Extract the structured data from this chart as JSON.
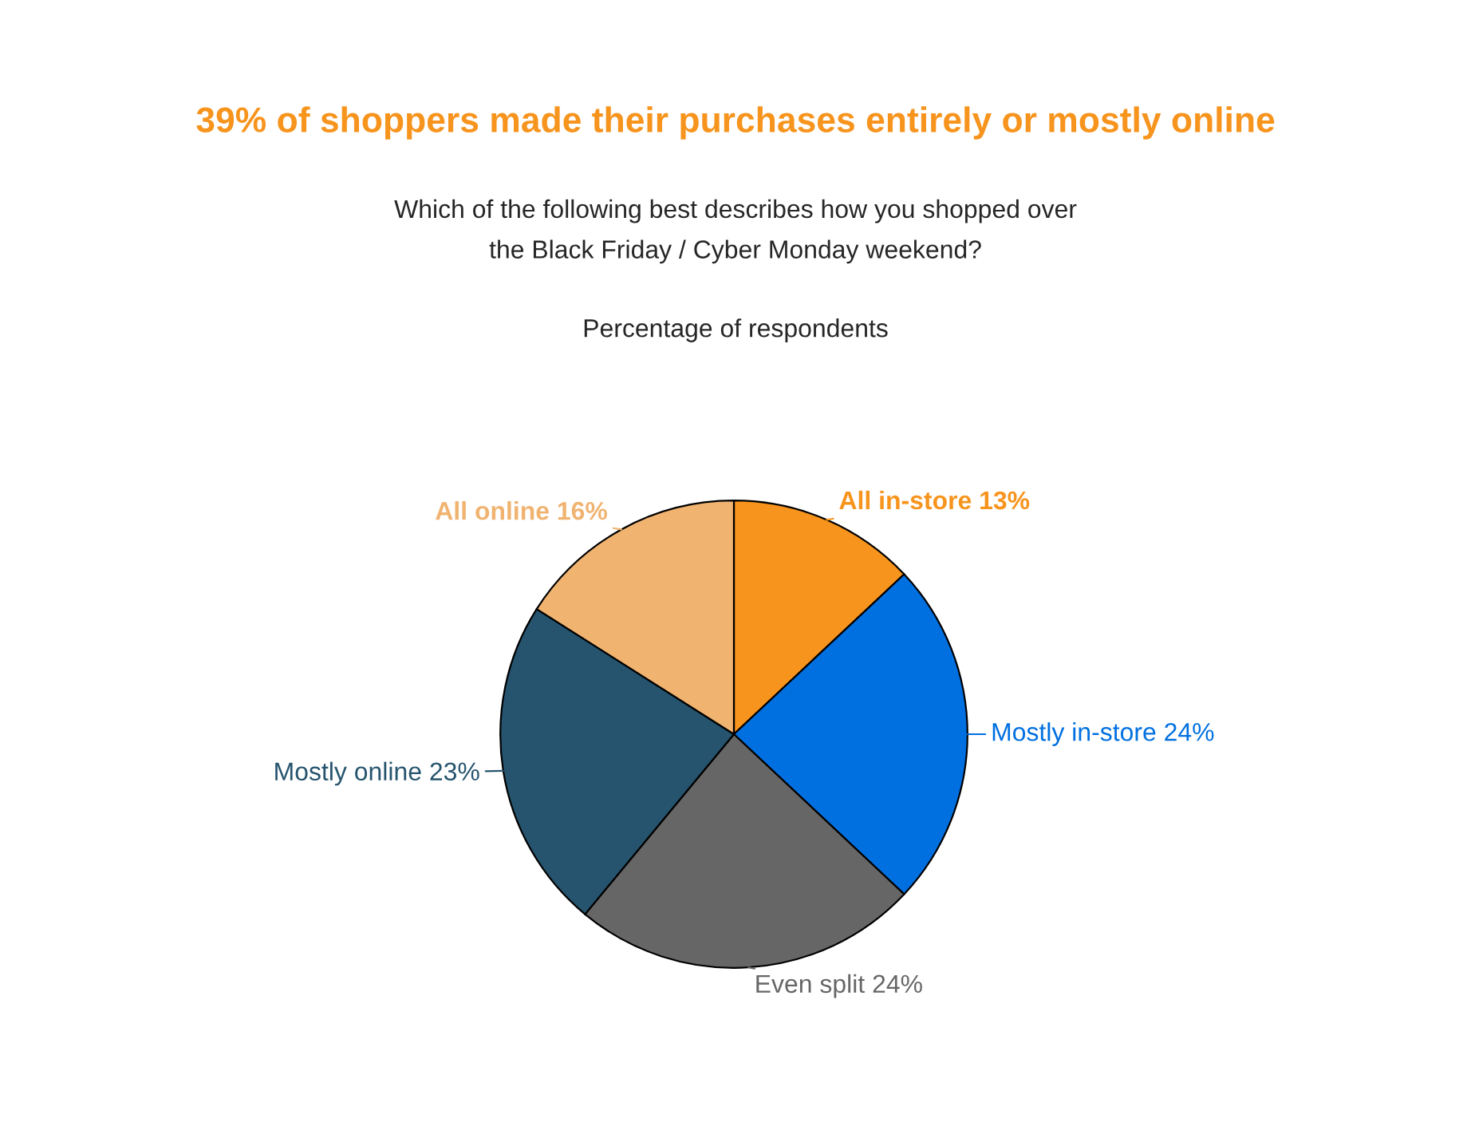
{
  "chart_data": {
    "type": "pie",
    "title": "39% of shoppers made their purchases entirely or mostly online",
    "subtitle": "Which of the following best describes how you shopped over\nthe Black Friday / Cyber Monday weekend?",
    "annotations": [
      "Percentage of respondents"
    ],
    "categories": [
      "All in-store",
      "Mostly in-store",
      "Even split",
      "Mostly online",
      "All online"
    ],
    "values": [
      13,
      24,
      24,
      23,
      16
    ],
    "value_labels": [
      "13%",
      "24%",
      "24%",
      "23%",
      "16%"
    ],
    "colors": [
      "#f7941d",
      "#0070e0",
      "#666666",
      "#26546e",
      "#f0b370"
    ],
    "legend": false
  }
}
